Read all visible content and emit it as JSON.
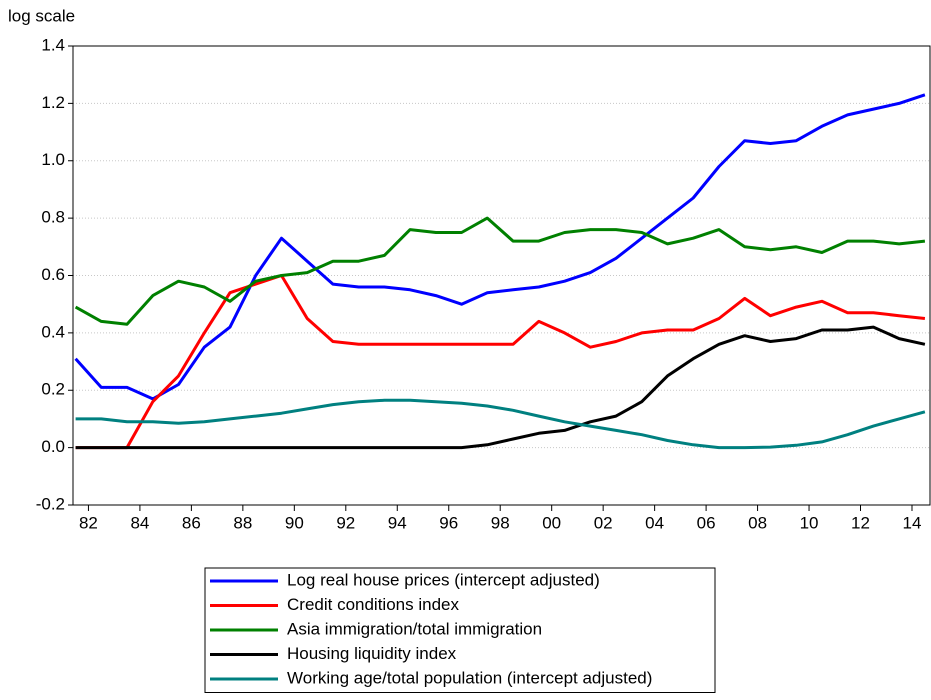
{
  "chart_data": {
    "type": "line",
    "y_axis_label": "log scale",
    "x": [
      1981.5,
      1982.5,
      1983.5,
      1984.5,
      1985.5,
      1986.5,
      1987.5,
      1988.5,
      1989.5,
      1990.5,
      1991.5,
      1992.5,
      1993.5,
      1994.5,
      1995.5,
      1996.5,
      1997.5,
      1998.5,
      1999.5,
      2000.5,
      2001.5,
      2002.5,
      2003.5,
      2004.5,
      2005.5,
      2006.5,
      2007.5,
      2008.5,
      2009.5,
      2010.5,
      2011.5,
      2012.5,
      2013.5,
      2014.5
    ],
    "series": [
      {
        "name": "Log real house prices (intercept adjusted)",
        "color": "#0000ff",
        "values": [
          0.31,
          0.21,
          0.21,
          0.17,
          0.22,
          0.35,
          0.42,
          0.6,
          0.73,
          0.65,
          0.57,
          0.56,
          0.56,
          0.55,
          0.53,
          0.5,
          0.54,
          0.55,
          0.56,
          0.58,
          0.61,
          0.66,
          0.73,
          0.8,
          0.87,
          0.98,
          1.07,
          1.06,
          1.07,
          1.12,
          1.16,
          1.18,
          1.2,
          1.23
        ]
      },
      {
        "name": "Credit conditions index",
        "color": "#ff0000",
        "values": [
          0,
          0,
          0,
          0.16,
          0.25,
          0.4,
          0.54,
          0.57,
          0.6,
          0.45,
          0.37,
          0.36,
          0.36,
          0.36,
          0.36,
          0.36,
          0.36,
          0.36,
          0.44,
          0.4,
          0.35,
          0.37,
          0.4,
          0.41,
          0.41,
          0.45,
          0.52,
          0.46,
          0.49,
          0.51,
          0.47,
          0.47,
          0.46,
          0.45
        ]
      },
      {
        "name": "Asia immigration/total immigration",
        "color": "#008000",
        "values": [
          0.49,
          0.44,
          0.43,
          0.53,
          0.58,
          0.56,
          0.51,
          0.58,
          0.6,
          0.61,
          0.65,
          0.65,
          0.67,
          0.76,
          0.75,
          0.75,
          0.8,
          0.72,
          0.72,
          0.75,
          0.76,
          0.76,
          0.75,
          0.71,
          0.73,
          0.76,
          0.7,
          0.69,
          0.7,
          0.68,
          0.72,
          0.72,
          0.71,
          0.72
        ]
      },
      {
        "name": "Housing liquidity index",
        "color": "#000000",
        "values": [
          0,
          0,
          0,
          0,
          0,
          0,
          0,
          0,
          0,
          0,
          0,
          0,
          0,
          0,
          0,
          0,
          0.01,
          0.03,
          0.05,
          0.06,
          0.09,
          0.11,
          0.16,
          0.25,
          0.31,
          0.36,
          0.39,
          0.37,
          0.38,
          0.41,
          0.41,
          0.42,
          0.38,
          0.36
        ]
      },
      {
        "name": "Working age/total population (intercept adjusted)",
        "color": "#008080",
        "values": [
          0.1,
          0.1,
          0.09,
          0.09,
          0.085,
          0.09,
          0.1,
          0.11,
          0.12,
          0.135,
          0.15,
          0.16,
          0.165,
          0.165,
          0.16,
          0.155,
          0.145,
          0.13,
          0.11,
          0.09,
          0.075,
          0.06,
          0.045,
          0.025,
          0.01,
          0.0,
          0.0,
          0.002,
          0.008,
          0.02,
          0.045,
          0.075,
          0.1,
          0.125
        ]
      }
    ],
    "xlim": [
      1981.4,
      2014.7
    ],
    "xticks": [
      {
        "value": 1982,
        "label": "82"
      },
      {
        "value": 1984,
        "label": "84"
      },
      {
        "value": 1986,
        "label": "86"
      },
      {
        "value": 1988,
        "label": "88"
      },
      {
        "value": 1990,
        "label": "90"
      },
      {
        "value": 1992,
        "label": "92"
      },
      {
        "value": 1994,
        "label": "94"
      },
      {
        "value": 1996,
        "label": "96"
      },
      {
        "value": 1998,
        "label": "98"
      },
      {
        "value": 2000,
        "label": "00"
      },
      {
        "value": 2002,
        "label": "02"
      },
      {
        "value": 2004,
        "label": "04"
      },
      {
        "value": 2006,
        "label": "06"
      },
      {
        "value": 2008,
        "label": "08"
      },
      {
        "value": 2010,
        "label": "10"
      },
      {
        "value": 2012,
        "label": "12"
      },
      {
        "value": 2014,
        "label": "14"
      }
    ],
    "ylim": [
      -0.2,
      1.4
    ],
    "yticks": [
      -0.2,
      {
        "value": 0,
        "label": "0.0"
      },
      0.2,
      0.4,
      0.6,
      0.8,
      {
        "value": 1,
        "label": "1.0"
      },
      1.2,
      1.4
    ],
    "grid": true
  }
}
